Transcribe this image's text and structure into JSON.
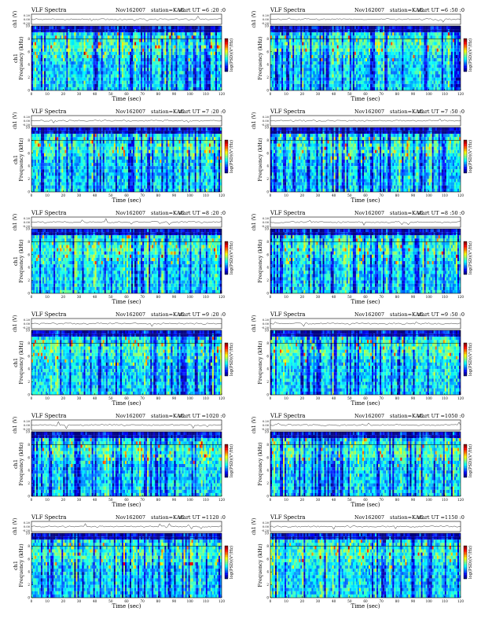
{
  "colors": {
    "page": "#ffffff",
    "axis": "#000000",
    "waveform": "#333333"
  },
  "chart_data": [
    {
      "type": "heatmap",
      "title": "VLF Spectra",
      "date": "Nov162007",
      "station": "station=KAG",
      "start": "start  UT  =6 :20 :0",
      "ch_label": "ch1 (V)",
      "ch_ticks": [
        "0.20",
        "0.00",
        "-0.20"
      ],
      "ylabel": "Frequency  (kHz)",
      "side_label": "ch1",
      "xlabel": "Time  (sec)",
      "xticks": [
        "0",
        "10",
        "20",
        "30",
        "40",
        "50",
        "60",
        "70",
        "80",
        "90",
        "100",
        "110",
        "120"
      ],
      "yticks": [
        "0",
        "2",
        "4",
        "6",
        "8",
        "10"
      ],
      "colorbar_label": "log(PSD)(V²/Hz)",
      "xlim": [
        0,
        120
      ],
      "ylim": [
        0,
        10
      ],
      "colormap": "jet"
    },
    {
      "type": "heatmap",
      "title": "VLF Spectra",
      "date": "Nov162007",
      "station": "station=KAG",
      "start": "start  UT  =6 :50 :0",
      "ch_label": "ch1 (V)",
      "ch_ticks": [
        "0.20",
        "0.00",
        "-0.20"
      ],
      "ylabel": "Frequency  (kHz)",
      "side_label": "",
      "xlabel": "Time  (sec)",
      "xticks": [
        "0",
        "10",
        "20",
        "30",
        "40",
        "50",
        "60",
        "70",
        "80",
        "90",
        "100",
        "110",
        "120"
      ],
      "yticks": [
        "0",
        "2",
        "4",
        "6",
        "8",
        "10"
      ],
      "colorbar_label": "log(PSD)(V²/Hz)",
      "xlim": [
        0,
        120
      ],
      "ylim": [
        0,
        10
      ],
      "colormap": "jet"
    },
    {
      "type": "heatmap",
      "title": "VLF Spectra",
      "date": "Nov162007",
      "station": "station=KAG",
      "start": "start  UT  =7 :20 :0",
      "ch_label": "ch1 (V)",
      "ch_ticks": [
        "0.20",
        "0.00",
        "-0.20"
      ],
      "ylabel": "Frequency  (kHz)",
      "side_label": "ch1",
      "xlabel": "Time  (sec)",
      "xticks": [
        "0",
        "10",
        "20",
        "30",
        "40",
        "50",
        "60",
        "70",
        "80",
        "90",
        "100",
        "110",
        "120"
      ],
      "yticks": [
        "0",
        "2",
        "4",
        "6",
        "8",
        "10"
      ],
      "colorbar_label": "log(PSD)(V²/Hz)",
      "xlim": [
        0,
        120
      ],
      "ylim": [
        0,
        10
      ],
      "colormap": "jet"
    },
    {
      "type": "heatmap",
      "title": "VLF Spectra",
      "date": "Nov162007",
      "station": "station=KAG",
      "start": "start  UT  =7 :50 :0",
      "ch_label": "ch1 (V)",
      "ch_ticks": [
        "0.20",
        "0.00",
        "-0.20"
      ],
      "ylabel": "Frequency  (kHz)",
      "side_label": "",
      "xlabel": "Time  (sec)",
      "xticks": [
        "0",
        "10",
        "20",
        "30",
        "40",
        "50",
        "60",
        "70",
        "80",
        "90",
        "100",
        "110",
        "120"
      ],
      "yticks": [
        "0",
        "2",
        "4",
        "6",
        "8",
        "10"
      ],
      "colorbar_label": "log(PSD)(V²/Hz)",
      "xlim": [
        0,
        120
      ],
      "ylim": [
        0,
        10
      ],
      "colormap": "jet"
    },
    {
      "type": "heatmap",
      "title": "VLF Spectra",
      "date": "Nov162007",
      "station": "station=KAG",
      "start": "start  UT  =8 :20 :0",
      "ch_label": "ch1 (V)",
      "ch_ticks": [
        "0.20",
        "0.00",
        "-0.20"
      ],
      "ylabel": "Frequency  (kHz)",
      "side_label": "ch1",
      "xlabel": "Time  (sec)",
      "xticks": [
        "0",
        "10",
        "20",
        "30",
        "40",
        "50",
        "60",
        "70",
        "80",
        "90",
        "100",
        "110",
        "120"
      ],
      "yticks": [
        "0",
        "2",
        "4",
        "6",
        "8",
        "10"
      ],
      "colorbar_label": "log(PSD)(V²/Hz)",
      "xlim": [
        0,
        120
      ],
      "ylim": [
        0,
        10
      ],
      "colormap": "jet"
    },
    {
      "type": "heatmap",
      "title": "VLF Spectra",
      "date": "Nov162007",
      "station": "station=KAG",
      "start": "start  UT  =8 :50 :0",
      "ch_label": "ch1 (V)",
      "ch_ticks": [
        "0.20",
        "0.00",
        "-0.20"
      ],
      "ylabel": "Frequency  (kHz)",
      "side_label": "",
      "xlabel": "Time  (sec)",
      "xticks": [
        "0",
        "10",
        "20",
        "30",
        "40",
        "50",
        "60",
        "70",
        "80",
        "90",
        "100",
        "110",
        "120"
      ],
      "yticks": [
        "0",
        "2",
        "4",
        "6",
        "8",
        "10"
      ],
      "colorbar_label": "log(PSD)(V²/Hz)",
      "xlim": [
        0,
        120
      ],
      "ylim": [
        0,
        10
      ],
      "colormap": "jet"
    },
    {
      "type": "heatmap",
      "title": "VLF Spectra",
      "date": "Nov162007",
      "station": "station=KAG",
      "start": "start  UT  =9 :20 :0",
      "ch_label": "ch1 (V)",
      "ch_ticks": [
        "0.20",
        "0.00",
        "-0.20"
      ],
      "ylabel": "Frequency  (kHz)",
      "side_label": "ch1",
      "xlabel": "Time  (sec)",
      "xticks": [
        "0",
        "10",
        "20",
        "30",
        "40",
        "50",
        "60",
        "70",
        "80",
        "90",
        "100",
        "110",
        "120"
      ],
      "yticks": [
        "0",
        "2",
        "4",
        "6",
        "8",
        "10"
      ],
      "colorbar_label": "log(PSD)(V²/Hz)",
      "xlim": [
        0,
        120
      ],
      "ylim": [
        0,
        10
      ],
      "colormap": "jet"
    },
    {
      "type": "heatmap",
      "title": "VLF Spectra",
      "date": "Nov162007",
      "station": "station=KAG",
      "start": "start  UT  =9 :50 :0",
      "ch_label": "ch1 (V)",
      "ch_ticks": [
        "0.20",
        "0.00",
        "-0.20"
      ],
      "ylabel": "Frequency  (kHz)",
      "side_label": "",
      "xlabel": "Time  (sec)",
      "xticks": [
        "0",
        "10",
        "20",
        "30",
        "40",
        "50",
        "60",
        "70",
        "80",
        "90",
        "100",
        "110",
        "120"
      ],
      "yticks": [
        "0",
        "2",
        "4",
        "6",
        "8",
        "10"
      ],
      "colorbar_label": "log(PSD)(V²/Hz)",
      "xlim": [
        0,
        120
      ],
      "ylim": [
        0,
        10
      ],
      "colormap": "jet"
    },
    {
      "type": "heatmap",
      "title": "VLF Spectra",
      "date": "Nov162007",
      "station": "station=KAG",
      "start": "start  UT  =1020 :0",
      "ch_label": "ch1 (V)",
      "ch_ticks": [
        "0.20",
        "0.00",
        "-0.20"
      ],
      "ylabel": "Frequency  (kHz)",
      "side_label": "ch1",
      "xlabel": "Time  (sec)",
      "xticks": [
        "0",
        "10",
        "20",
        "30",
        "40",
        "50",
        "60",
        "70",
        "80",
        "90",
        "100",
        "110",
        "120"
      ],
      "yticks": [
        "0",
        "2",
        "4",
        "6",
        "8",
        "10"
      ],
      "colorbar_label": "log(PSD)(V²/Hz)",
      "xlim": [
        0,
        120
      ],
      "ylim": [
        0,
        10
      ],
      "colormap": "jet"
    },
    {
      "type": "heatmap",
      "title": "VLF Spectra",
      "date": "Nov162007",
      "station": "station=KAG",
      "start": "start  UT  =1050 :0",
      "ch_label": "ch1 (V)",
      "ch_ticks": [
        "0.20",
        "0.00",
        "-0.20"
      ],
      "ylabel": "Frequency  (kHz)",
      "side_label": "",
      "xlabel": "Time  (sec)",
      "xticks": [
        "0",
        "10",
        "20",
        "30",
        "40",
        "50",
        "60",
        "70",
        "80",
        "90",
        "100",
        "110",
        "120"
      ],
      "yticks": [
        "0",
        "2",
        "4",
        "6",
        "8",
        "10"
      ],
      "colorbar_label": "log(PSD)(V²/Hz)",
      "xlim": [
        0,
        120
      ],
      "ylim": [
        0,
        10
      ],
      "colormap": "jet"
    },
    {
      "type": "heatmap",
      "title": "VLF Spectra",
      "date": "Nov162007",
      "station": "station=KAG",
      "start": "start  UT  =1120 :0",
      "ch_label": "ch1 (V)",
      "ch_ticks": [
        "0.20",
        "0.00",
        "-0.20"
      ],
      "ylabel": "Frequency  (kHz)",
      "side_label": "ch1",
      "xlabel": "Time  (sec)",
      "xticks": [
        "0",
        "10",
        "20",
        "30",
        "40",
        "50",
        "60",
        "70",
        "80",
        "90",
        "100",
        "110",
        "120"
      ],
      "yticks": [
        "0",
        "2",
        "4",
        "6",
        "8",
        "10"
      ],
      "colorbar_label": "log(PSD)(V²/Hz)",
      "xlim": [
        0,
        120
      ],
      "ylim": [
        0,
        10
      ],
      "colormap": "jet"
    },
    {
      "type": "heatmap",
      "title": "VLF Spectra",
      "date": "Nov162007",
      "station": "station=KAG",
      "start": "start  UT  =1150 :0",
      "ch_label": "ch1 (V)",
      "ch_ticks": [
        "0.20",
        "0.00",
        "-0.20"
      ],
      "ylabel": "Frequency  (kHz)",
      "side_label": "",
      "xlabel": "Time  (sec)",
      "xticks": [
        "0",
        "10",
        "20",
        "30",
        "40",
        "50",
        "60",
        "70",
        "80",
        "90",
        "100",
        "110",
        "120"
      ],
      "yticks": [
        "0",
        "2",
        "4",
        "6",
        "8",
        "10"
      ],
      "colorbar_label": "log(PSD)(V²/Hz)",
      "xlim": [
        0,
        120
      ],
      "ylim": [
        0,
        10
      ],
      "colormap": "jet"
    }
  ]
}
